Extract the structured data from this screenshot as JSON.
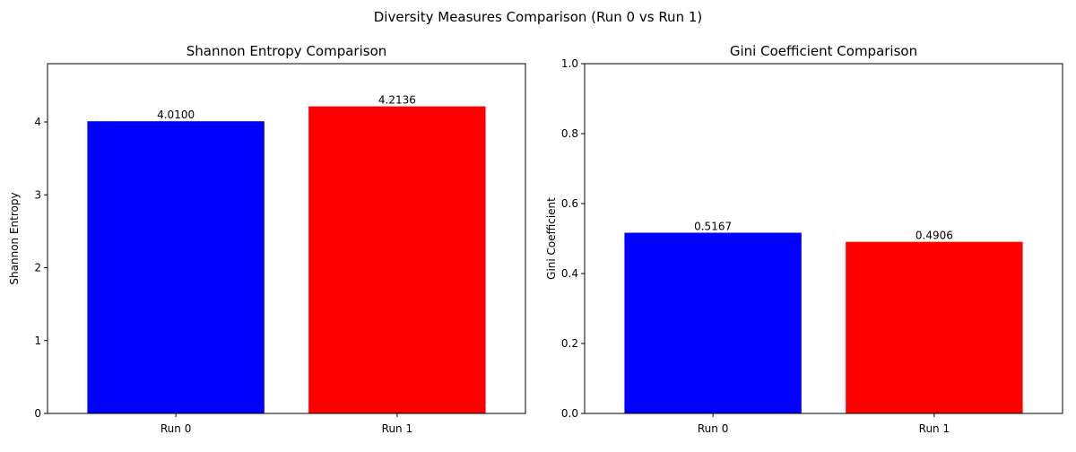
{
  "suptitle": "Diversity Measures Comparison (Run 0 vs Run 1)",
  "chart_data": [
    {
      "type": "bar",
      "title": "Shannon Entropy Comparison",
      "xlabel": "",
      "ylabel": "Shannon Entropy",
      "categories": [
        "Run 0",
        "Run 1"
      ],
      "values": [
        4.01,
        4.2136
      ],
      "value_labels": [
        "4.0100",
        "4.2136"
      ],
      "colors": [
        "#0000ff",
        "#ff0000"
      ],
      "ylim": [
        0,
        4.8
      ],
      "yticks": [
        0,
        1,
        2,
        3,
        4
      ],
      "ytick_labels": [
        "0",
        "1",
        "2",
        "3",
        "4"
      ],
      "grid": false,
      "legend": "none"
    },
    {
      "type": "bar",
      "title": "Gini Coefficient Comparison",
      "xlabel": "",
      "ylabel": "Gini Coefficient",
      "categories": [
        "Run 0",
        "Run 1"
      ],
      "values": [
        0.5167,
        0.4906
      ],
      "value_labels": [
        "0.5167",
        "0.4906"
      ],
      "colors": [
        "#0000ff",
        "#ff0000"
      ],
      "ylim": [
        0,
        1.0
      ],
      "yticks": [
        0,
        0.2,
        0.4,
        0.6,
        0.8,
        1.0
      ],
      "ytick_labels": [
        "0.0",
        "0.2",
        "0.4",
        "0.6",
        "0.8",
        "1.0"
      ],
      "grid": false,
      "legend": "none"
    }
  ]
}
